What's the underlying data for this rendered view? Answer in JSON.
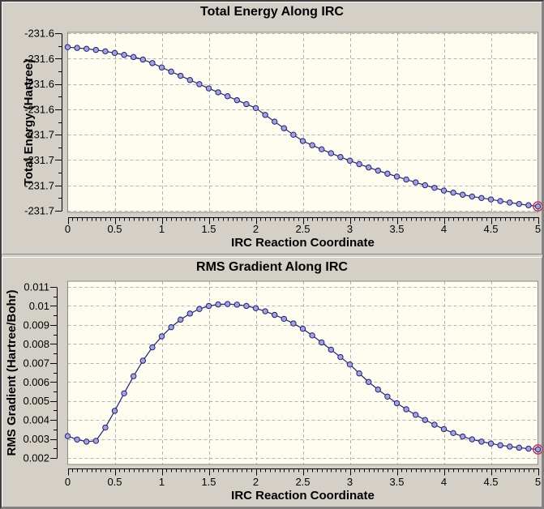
{
  "colors": {
    "window_bg": "#d4d0c8",
    "plot_bg": "#fffcf0",
    "grid": "#b3b3b3",
    "plot_border": "#8a8a8a",
    "axis": "#000000",
    "line": "#20207a",
    "marker_fill": "#a0a2e2",
    "marker_stroke": "#202070",
    "highlight_ring": "#cc3355",
    "text": "#000000"
  },
  "chart_data": [
    {
      "type": "line",
      "title": "Total Energy Along IRC",
      "xlabel": "IRC Reaction Coordinate",
      "ylabel": "Total Energy (Hartree)",
      "xlim": [
        0,
        5
      ],
      "ylim": [
        -231.7212,
        -231.5794
      ],
      "grid": "dashed",
      "legend": "none",
      "x_ticks": {
        "values": [
          0,
          0.5,
          1,
          1.5,
          2,
          2.5,
          3,
          3.5,
          4,
          4.5,
          5
        ],
        "labels": [
          "0",
          "0.5",
          "1",
          "1.5",
          "2",
          "2.5",
          "3",
          "3.5",
          "4",
          "4.5",
          "5"
        ],
        "minor_step": 0.05
      },
      "y_ticks": {
        "values": [
          -231.58,
          -231.6,
          -231.62,
          -231.64,
          -231.66,
          -231.68,
          -231.7,
          -231.72
        ],
        "labels": [
          "-231.6",
          "-231.6",
          "-231.6",
          "-231.6",
          "-231.7",
          "-231.7",
          "-231.7",
          "-231.7"
        ],
        "minor_step": 0.01
      },
      "x": [
        0,
        0.1,
        0.2,
        0.3,
        0.4,
        0.5,
        0.6,
        0.7,
        0.8,
        0.9,
        1,
        1.1,
        1.2,
        1.3,
        1.4,
        1.5,
        1.6,
        1.7,
        1.8,
        1.9,
        2,
        2.1,
        2.2,
        2.3,
        2.4,
        2.5,
        2.6,
        2.7,
        2.8,
        2.9,
        3,
        3.1,
        3.2,
        3.3,
        3.4,
        3.5,
        3.6,
        3.7,
        3.8,
        3.9,
        4,
        4.1,
        4.2,
        4.3,
        4.4,
        4.5,
        4.6,
        4.7,
        4.8,
        4.9,
        5
      ],
      "y": [
        -231.591,
        -231.5916,
        -231.5923,
        -231.5932,
        -231.5943,
        -231.5956,
        -231.5971,
        -231.5988,
        -231.6008,
        -231.6036,
        -231.607,
        -231.6103,
        -231.6136,
        -231.6169,
        -231.6202,
        -231.6235,
        -231.6266,
        -231.6297,
        -231.6328,
        -231.6359,
        -231.639,
        -231.6444,
        -231.6497,
        -231.6549,
        -231.66,
        -231.665,
        -231.6683,
        -231.6715,
        -231.6746,
        -231.6776,
        -231.6805,
        -231.6832,
        -231.6858,
        -231.6883,
        -231.6907,
        -231.693,
        -231.6953,
        -231.6976,
        -231.6998,
        -231.7019,
        -231.704,
        -231.7057,
        -231.7073,
        -231.7087,
        -231.7099,
        -231.711,
        -231.7123,
        -231.7135,
        -231.7146,
        -231.7156,
        -231.7165
      ],
      "highlight_last_point": true
    },
    {
      "type": "line",
      "title": "RMS Gradient Along IRC",
      "xlabel": "IRC Reaction Coordinate",
      "ylabel": "RMS Gradient (Hartree/Bohr)",
      "xlim": [
        0,
        5
      ],
      "ylim": [
        0.00166,
        0.0113
      ],
      "grid": "dashed",
      "legend": "none",
      "x_ticks": {
        "values": [
          0,
          0.5,
          1,
          1.5,
          2,
          2.5,
          3,
          3.5,
          4,
          4.5,
          5
        ],
        "labels": [
          "0",
          "0.5",
          "1",
          "1.5",
          "2",
          "2.5",
          "3",
          "3.5",
          "4",
          "4.5",
          "5"
        ],
        "minor_step": 0.05
      },
      "y_ticks": {
        "values": [
          0.011,
          0.01,
          0.009,
          0.008,
          0.007,
          0.006,
          0.005,
          0.004,
          0.003,
          0.002
        ],
        "labels": [
          "0.011",
          "0.01",
          "0.009",
          "0.008",
          "0.007",
          "0.006",
          "0.005",
          "0.004",
          "0.003",
          "0.002"
        ],
        "minor_step": 0.0005
      },
      "x": [
        0,
        0.1,
        0.2,
        0.3,
        0.4,
        0.5,
        0.6,
        0.7,
        0.8,
        0.9,
        1,
        1.1,
        1.2,
        1.3,
        1.4,
        1.5,
        1.6,
        1.7,
        1.8,
        1.9,
        2,
        2.1,
        2.2,
        2.3,
        2.4,
        2.5,
        2.6,
        2.7,
        2.8,
        2.9,
        3,
        3.1,
        3.2,
        3.3,
        3.4,
        3.5,
        3.6,
        3.7,
        3.8,
        3.9,
        4,
        4.1,
        4.2,
        4.3,
        4.4,
        4.5,
        4.6,
        4.7,
        4.8,
        4.9,
        5
      ],
      "y": [
        0.00315,
        0.00297,
        0.00286,
        0.0029,
        0.0036,
        0.00448,
        0.0054,
        0.0063,
        0.00712,
        0.00782,
        0.0084,
        0.00888,
        0.00928,
        0.0096,
        0.00984,
        0.01,
        0.01008,
        0.0101,
        0.01007,
        0.01,
        0.00988,
        0.00972,
        0.00953,
        0.00932,
        0.00908,
        0.0088,
        0.00845,
        0.00808,
        0.0077,
        0.00731,
        0.00692,
        0.00645,
        0.006,
        0.0056,
        0.00523,
        0.00488,
        0.00456,
        0.00427,
        0.004,
        0.00375,
        0.00352,
        0.00331,
        0.00313,
        0.00298,
        0.00286,
        0.00276,
        0.00267,
        0.0026,
        0.00254,
        0.00249,
        0.00245
      ],
      "highlight_last_point": true
    }
  ]
}
